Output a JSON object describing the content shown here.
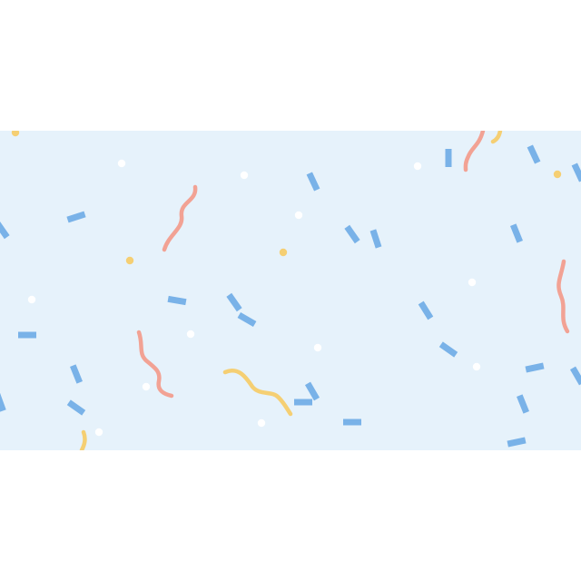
{
  "colors": {
    "page_background": "#ffffff",
    "banner_background": "#e6f2fb",
    "confetti_blue": "#79b2e8",
    "confetti_red": "#f2a294",
    "confetti_yellow": "#f5cf73",
    "confetti_white": "#ffffff"
  },
  "icons": {
    "banner": "confetti-banner",
    "strip": "confetti-strip-icon",
    "squiggle": "confetti-squiggle-icon",
    "dot": "confetti-dot-icon"
  }
}
